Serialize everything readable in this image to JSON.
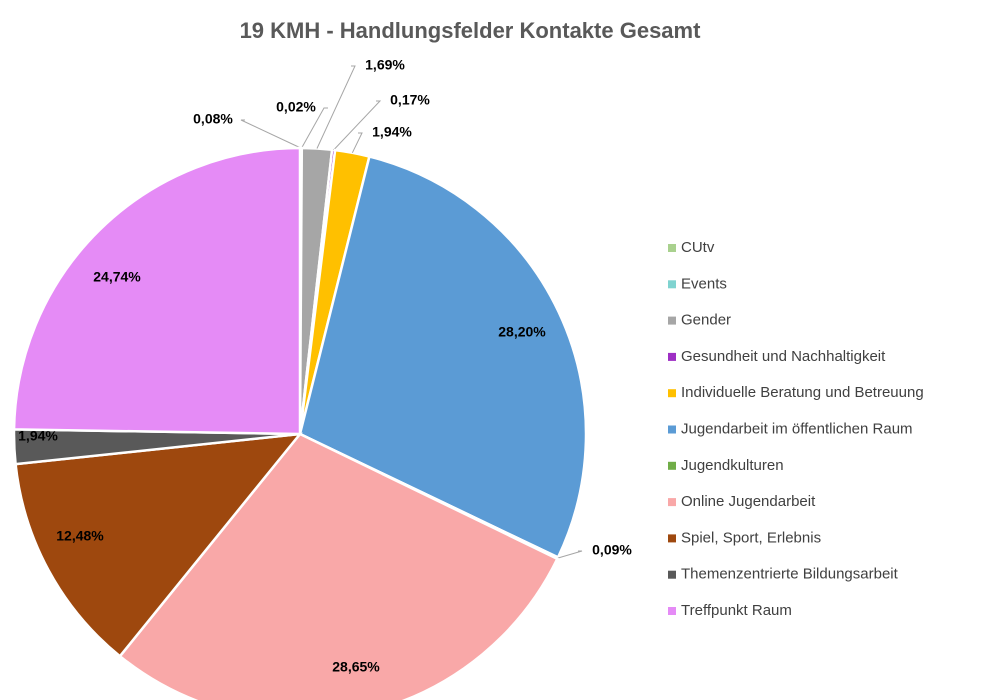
{
  "chart_data": {
    "type": "pie",
    "title": "19 KMH - Handlungsfelder Kontakte Gesamt",
    "categories": [
      "CUtv",
      "Events",
      "Gender",
      "Gesundheit und Nachhaltigkeit",
      "Individuelle Beratung und Betreuung",
      "Jugendarbeit im öffentlichen Raum",
      "Jugendkulturen",
      "Online Jugendarbeit",
      "Spiel, Sport, Erlebnis",
      "Themenzentrierte Bildungsarbeit",
      "Treffpunkt Raum"
    ],
    "values": [
      0.08,
      0.02,
      1.69,
      0.17,
      1.94,
      28.2,
      0.09,
      28.65,
      12.48,
      1.94,
      24.74
    ],
    "value_labels": [
      "0,08%",
      "0,02%",
      "1,69%",
      "0,17%",
      "1,94%",
      "28,20%",
      "0,09%",
      "28,65%",
      "12,48%",
      "1,94%",
      "24,74%"
    ],
    "colors": [
      "#a9d18e",
      "#7fd3d0",
      "#a6a6a6",
      "#9e2fc4",
      "#ffc000",
      "#5b9bd5",
      "#70ad47",
      "#f9a8a8",
      "#9e480e",
      "#595959",
      "#e58bf6"
    ],
    "legend": "right"
  }
}
